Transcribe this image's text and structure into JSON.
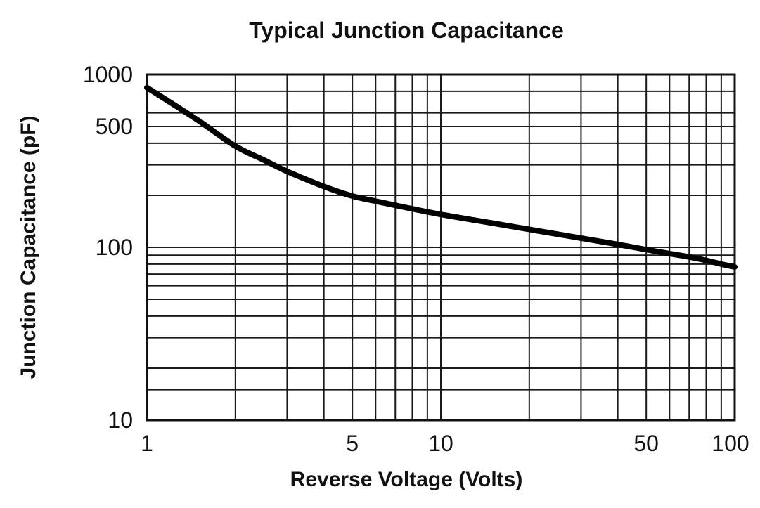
{
  "chart_data": {
    "type": "line",
    "title": "Typical Junction Capacitance",
    "xlabel": "Reverse Voltage (Volts)",
    "ylabel": "Junction Capacitance (pF)",
    "xscale": "log",
    "yscale": "log",
    "xlim": [
      1,
      100
    ],
    "ylim": [
      10,
      1000
    ],
    "grid": true,
    "x_tick_labels": [
      {
        "value": 1,
        "label": "1"
      },
      {
        "value": 5,
        "label": "5"
      },
      {
        "value": 10,
        "label": "10"
      },
      {
        "value": 50,
        "label": "50"
      },
      {
        "value": 100,
        "label": "100"
      }
    ],
    "y_tick_labels": [
      {
        "value": 10,
        "label": "10"
      },
      {
        "value": 100,
        "label": "100"
      },
      {
        "value": 500,
        "label": "500"
      },
      {
        "value": 1000,
        "label": "1000"
      }
    ],
    "x_gridlines": [
      1,
      2,
      3,
      4,
      5,
      6,
      7,
      8,
      9,
      10,
      20,
      30,
      40,
      50,
      60,
      70,
      80,
      90,
      100
    ],
    "y_gridlines": [
      10,
      15,
      20,
      30,
      40,
      50,
      60,
      70,
      80,
      90,
      100,
      200,
      300,
      400,
      500,
      600,
      800,
      1000
    ],
    "series": [
      {
        "points": [
          {
            "x": 1,
            "y": 840
          },
          {
            "x": 1.2,
            "y": 690
          },
          {
            "x": 1.5,
            "y": 540
          },
          {
            "x": 2,
            "y": 385
          },
          {
            "x": 2.5,
            "y": 320
          },
          {
            "x": 3,
            "y": 275
          },
          {
            "x": 4,
            "y": 225
          },
          {
            "x": 5,
            "y": 198
          },
          {
            "x": 6,
            "y": 185
          },
          {
            "x": 7,
            "y": 175
          },
          {
            "x": 8,
            "y": 167
          },
          {
            "x": 10,
            "y": 155
          },
          {
            "x": 15,
            "y": 138
          },
          {
            "x": 20,
            "y": 127
          },
          {
            "x": 30,
            "y": 113
          },
          {
            "x": 40,
            "y": 104
          },
          {
            "x": 50,
            "y": 97
          },
          {
            "x": 60,
            "y": 92
          },
          {
            "x": 70,
            "y": 88
          },
          {
            "x": 80,
            "y": 84
          },
          {
            "x": 90,
            "y": 80
          },
          {
            "x": 100,
            "y": 77
          }
        ],
        "color": "#000000"
      }
    ]
  }
}
